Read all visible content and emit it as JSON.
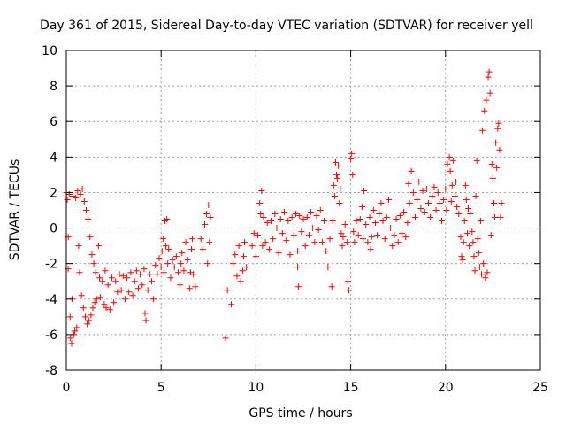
{
  "chart_data": {
    "type": "scatter",
    "title": "Day 361 of 2015, Sidereal Day-to-day VTEC variation (SDTVAR) for receiver yell",
    "xlabel": "GPS time / hours",
    "ylabel": "SDTVAR / TECUs",
    "xlim": [
      0,
      25
    ],
    "ylim": [
      -8,
      10
    ],
    "xticks": [
      "0",
      "5",
      "10",
      "15",
      "20",
      "25"
    ],
    "yticks": [
      "-8",
      "-6",
      "-4",
      "-2",
      "0",
      "2",
      "4",
      "6",
      "8",
      "10"
    ],
    "grid": true,
    "marker": "+",
    "marker_color": "#ff0000",
    "series": [
      {
        "name": "yell",
        "points": [
          [
            0.0,
            2.0
          ],
          [
            0.05,
            1.6
          ],
          [
            0.1,
            -0.5
          ],
          [
            0.1,
            -2.3
          ],
          [
            0.15,
            1.9
          ],
          [
            0.2,
            -5.0
          ],
          [
            0.22,
            -6.2
          ],
          [
            0.28,
            -6.5
          ],
          [
            0.3,
            -4.0
          ],
          [
            0.35,
            1.8
          ],
          [
            0.4,
            -6.0
          ],
          [
            0.45,
            -5.8
          ],
          [
            0.5,
            1.7
          ],
          [
            0.55,
            -5.6
          ],
          [
            0.6,
            2.1
          ],
          [
            0.65,
            -1.0
          ],
          [
            0.7,
            -2.5
          ],
          [
            0.75,
            1.9
          ],
          [
            0.8,
            -3.8
          ],
          [
            0.85,
            2.2
          ],
          [
            0.9,
            -4.5
          ],
          [
            0.95,
            1.5
          ],
          [
            1.0,
            -5.0
          ],
          [
            1.05,
            1.0
          ],
          [
            1.1,
            -5.4
          ],
          [
            1.15,
            0.5
          ],
          [
            1.2,
            -5.2
          ],
          [
            1.25,
            -0.5
          ],
          [
            1.3,
            -4.9
          ],
          [
            1.35,
            -1.5
          ],
          [
            1.4,
            -4.5
          ],
          [
            1.45,
            -2.0
          ],
          [
            1.5,
            -4.2
          ],
          [
            1.55,
            -2.5
          ],
          [
            1.6,
            -4.0
          ],
          [
            1.7,
            -1.0
          ],
          [
            1.75,
            -2.8
          ],
          [
            1.8,
            -3.9
          ],
          [
            1.9,
            -3.0
          ],
          [
            2.0,
            -4.3
          ],
          [
            2.05,
            -2.4
          ],
          [
            2.1,
            -4.5
          ],
          [
            2.2,
            -3.2
          ],
          [
            2.3,
            -4.6
          ],
          [
            2.4,
            -2.8
          ],
          [
            2.5,
            -4.2
          ],
          [
            2.6,
            -3.0
          ],
          [
            2.7,
            -3.6
          ],
          [
            2.8,
            -2.6
          ],
          [
            2.9,
            -3.5
          ],
          [
            3.0,
            -2.7
          ],
          [
            3.1,
            -4.0
          ],
          [
            3.2,
            -2.8
          ],
          [
            3.3,
            -3.6
          ],
          [
            3.4,
            -2.5
          ],
          [
            3.5,
            -3.8
          ],
          [
            3.6,
            -3.0
          ],
          [
            3.7,
            -2.4
          ],
          [
            3.8,
            -3.4
          ],
          [
            3.9,
            -2.6
          ],
          [
            4.0,
            -3.2
          ],
          [
            4.1,
            -2.3
          ],
          [
            4.15,
            -4.8
          ],
          [
            4.2,
            -5.2
          ],
          [
            4.3,
            -3.5
          ],
          [
            4.4,
            -2.6
          ],
          [
            4.5,
            -3.0
          ],
          [
            4.6,
            -4.0
          ],
          [
            4.7,
            -2.1
          ],
          [
            4.8,
            -2.6
          ],
          [
            4.9,
            -1.7
          ],
          [
            5.0,
            -2.2
          ],
          [
            5.05,
            -1.3
          ],
          [
            5.1,
            -0.6
          ],
          [
            5.15,
            -2.5
          ],
          [
            5.2,
            0.4
          ],
          [
            5.25,
            -1.0
          ],
          [
            5.3,
            0.5
          ],
          [
            5.35,
            -2.0
          ],
          [
            5.4,
            -1.2
          ],
          [
            5.5,
            -2.8
          ],
          [
            5.6,
            -1.8
          ],
          [
            5.7,
            -2.2
          ],
          [
            5.8,
            -1.6
          ],
          [
            5.9,
            -2.5
          ],
          [
            6.0,
            -3.2
          ],
          [
            6.05,
            -2.0
          ],
          [
            6.1,
            -1.4
          ],
          [
            6.2,
            -2.4
          ],
          [
            6.3,
            -0.8
          ],
          [
            6.4,
            -1.8
          ],
          [
            6.5,
            -3.4
          ],
          [
            6.55,
            -2.5
          ],
          [
            6.6,
            -1.2
          ],
          [
            6.65,
            -0.6
          ],
          [
            6.7,
            -2.6
          ],
          [
            6.8,
            -3.3
          ],
          [
            7.1,
            -0.6
          ],
          [
            7.2,
            -1.2
          ],
          [
            7.3,
            0.2
          ],
          [
            7.4,
            0.8
          ],
          [
            7.45,
            -2.0
          ],
          [
            7.5,
            1.3
          ],
          [
            7.55,
            -0.8
          ],
          [
            7.6,
            0.6
          ],
          [
            8.4,
            -6.2
          ],
          [
            8.5,
            -3.5
          ],
          [
            8.7,
            -4.3
          ],
          [
            8.8,
            -2.0
          ],
          [
            8.9,
            -1.5
          ],
          [
            9.0,
            -2.7
          ],
          [
            9.1,
            -1.0
          ],
          [
            9.2,
            -3.0
          ],
          [
            9.3,
            -2.4
          ],
          [
            9.35,
            -1.6
          ],
          [
            9.4,
            -0.8
          ],
          [
            9.5,
            -2.2
          ],
          [
            9.8,
            -1.0
          ],
          [
            9.9,
            -0.3
          ],
          [
            10.0,
            -1.6
          ],
          [
            10.1,
            -0.4
          ],
          [
            10.2,
            1.4
          ],
          [
            10.25,
            0.8
          ],
          [
            10.3,
            2.1
          ],
          [
            10.35,
            -1.0
          ],
          [
            10.4,
            0.6
          ],
          [
            10.5,
            -0.8
          ],
          [
            10.6,
            0.3
          ],
          [
            10.7,
            -1.2
          ],
          [
            10.8,
            0.4
          ],
          [
            10.9,
            -0.6
          ],
          [
            11.0,
            0.8
          ],
          [
            11.1,
            0.0
          ],
          [
            11.2,
            -1.4
          ],
          [
            11.3,
            0.5
          ],
          [
            11.4,
            -0.3
          ],
          [
            11.5,
            0.9
          ],
          [
            11.6,
            -0.7
          ],
          [
            11.7,
            0.4
          ],
          [
            11.8,
            -1.5
          ],
          [
            11.9,
            0.6
          ],
          [
            12.0,
            -0.4
          ],
          [
            12.1,
            0.8
          ],
          [
            12.2,
            -1.3
          ],
          [
            12.2,
            -2.2
          ],
          [
            12.25,
            -3.3
          ],
          [
            12.3,
            0.7
          ],
          [
            12.4,
            -0.2
          ],
          [
            12.5,
            0.5
          ],
          [
            12.6,
            -1.0
          ],
          [
            12.7,
            0.6
          ],
          [
            12.8,
            -0.4
          ],
          [
            12.9,
            0.9
          ],
          [
            13.0,
            0.0
          ],
          [
            13.1,
            -0.8
          ],
          [
            13.2,
            0.7
          ],
          [
            13.3,
            -0.1
          ],
          [
            13.4,
            1.0
          ],
          [
            13.5,
            -0.8
          ],
          [
            13.6,
            0.4
          ],
          [
            13.7,
            -1.3
          ],
          [
            13.8,
            -2.2
          ],
          [
            13.9,
            -0.6
          ],
          [
            14.0,
            -3.3
          ],
          [
            14.05,
            0.4
          ],
          [
            14.1,
            2.4
          ],
          [
            14.15,
            1.8
          ],
          [
            14.2,
            3.7
          ],
          [
            14.25,
            3.0
          ],
          [
            14.3,
            2.8
          ],
          [
            14.35,
            3.5
          ],
          [
            14.4,
            1.4
          ],
          [
            14.45,
            2.2
          ],
          [
            14.5,
            -0.3
          ],
          [
            14.55,
            -1.0
          ],
          [
            14.6,
            -0.5
          ],
          [
            14.7,
            0.2
          ],
          [
            14.8,
            -0.8
          ],
          [
            14.85,
            -3.0
          ],
          [
            14.9,
            -3.5
          ],
          [
            15.0,
            3.9
          ],
          [
            15.05,
            4.2
          ],
          [
            15.1,
            3.0
          ],
          [
            15.15,
            -0.2
          ],
          [
            15.2,
            -0.8
          ],
          [
            15.3,
            0.4
          ],
          [
            15.4,
            -0.4
          ],
          [
            15.5,
            0.5
          ],
          [
            15.6,
            1.2
          ],
          [
            15.65,
            -0.6
          ],
          [
            15.7,
            2.1
          ],
          [
            15.8,
            0.2
          ],
          [
            15.9,
            -0.8
          ],
          [
            16.0,
            0.6
          ],
          [
            16.05,
            -1.2
          ],
          [
            16.1,
            -0.5
          ],
          [
            16.2,
            1.0
          ],
          [
            16.3,
            0.3
          ],
          [
            16.4,
            -0.4
          ],
          [
            16.5,
            0.8
          ],
          [
            16.6,
            1.4
          ],
          [
            16.7,
            0.4
          ],
          [
            16.8,
            -0.6
          ],
          [
            16.9,
            0.6
          ],
          [
            17.0,
            1.6
          ],
          [
            17.1,
            0.0
          ],
          [
            17.2,
            -1.0
          ],
          [
            17.3,
            -0.4
          ],
          [
            17.4,
            0.5
          ],
          [
            17.5,
            -0.8
          ],
          [
            17.6,
            0.7
          ],
          [
            17.7,
            -0.3
          ],
          [
            17.8,
            0.9
          ],
          [
            17.9,
            -0.5
          ],
          [
            18.0,
            0.3
          ],
          [
            18.05,
            2.5
          ],
          [
            18.1,
            1.4
          ],
          [
            18.2,
            3.2
          ],
          [
            18.3,
            2.0
          ],
          [
            18.4,
            0.6
          ],
          [
            18.5,
            1.6
          ],
          [
            18.6,
            2.6
          ],
          [
            18.7,
            1.1
          ],
          [
            18.8,
            2.1
          ],
          [
            18.9,
            0.9
          ],
          [
            19.0,
            2.2
          ],
          [
            19.1,
            1.4
          ],
          [
            19.2,
            0.6
          ],
          [
            19.3,
            1.8
          ],
          [
            19.4,
            2.3
          ],
          [
            19.5,
            1.0
          ],
          [
            19.6,
            2.0
          ],
          [
            19.7,
            1.4
          ],
          [
            19.8,
            0.4
          ],
          [
            19.9,
            1.6
          ],
          [
            20.0,
            2.2
          ],
          [
            20.05,
            1.0
          ],
          [
            20.1,
            3.6
          ],
          [
            20.2,
            4.0
          ],
          [
            20.25,
            3.2
          ],
          [
            20.3,
            1.5
          ],
          [
            20.35,
            2.4
          ],
          [
            20.4,
            3.8
          ],
          [
            20.5,
            1.8
          ],
          [
            20.55,
            2.6
          ],
          [
            20.6,
            1.2
          ],
          [
            20.7,
            0.8
          ],
          [
            20.8,
            -0.5
          ],
          [
            20.85,
            -1.6
          ],
          [
            20.9,
            -1.8
          ],
          [
            20.95,
            -0.8
          ],
          [
            21.0,
            0.4
          ],
          [
            21.05,
            2.4
          ],
          [
            21.1,
            1.6
          ],
          [
            21.15,
            -0.3
          ],
          [
            21.2,
            1.1
          ],
          [
            21.25,
            -1.0
          ],
          [
            21.3,
            0.8
          ],
          [
            21.4,
            -0.2
          ],
          [
            21.45,
            -0.8
          ],
          [
            21.5,
            -1.6
          ],
          [
            21.55,
            -2.4
          ],
          [
            21.6,
            1.8
          ],
          [
            21.65,
            3.8
          ],
          [
            21.7,
            -0.6
          ],
          [
            21.75,
            -1.4
          ],
          [
            21.8,
            -2.2
          ],
          [
            21.85,
            0.4
          ],
          [
            21.9,
            -2.6
          ],
          [
            21.95,
            5.5
          ],
          [
            22.0,
            -2.0
          ],
          [
            22.05,
            6.6
          ],
          [
            22.1,
            -2.8
          ],
          [
            22.15,
            7.2
          ],
          [
            22.2,
            -2.5
          ],
          [
            22.25,
            8.5
          ],
          [
            22.3,
            8.8
          ],
          [
            22.35,
            7.6
          ],
          [
            22.4,
            -0.4
          ],
          [
            22.45,
            3.6
          ],
          [
            22.5,
            2.8
          ],
          [
            22.55,
            1.4
          ],
          [
            22.6,
            0.6
          ],
          [
            22.65,
            4.8
          ],
          [
            22.7,
            3.4
          ],
          [
            22.75,
            5.6
          ],
          [
            22.8,
            5.9
          ],
          [
            22.85,
            4.4
          ],
          [
            22.9,
            0.6
          ],
          [
            22.95,
            1.4
          ]
        ]
      }
    ]
  }
}
